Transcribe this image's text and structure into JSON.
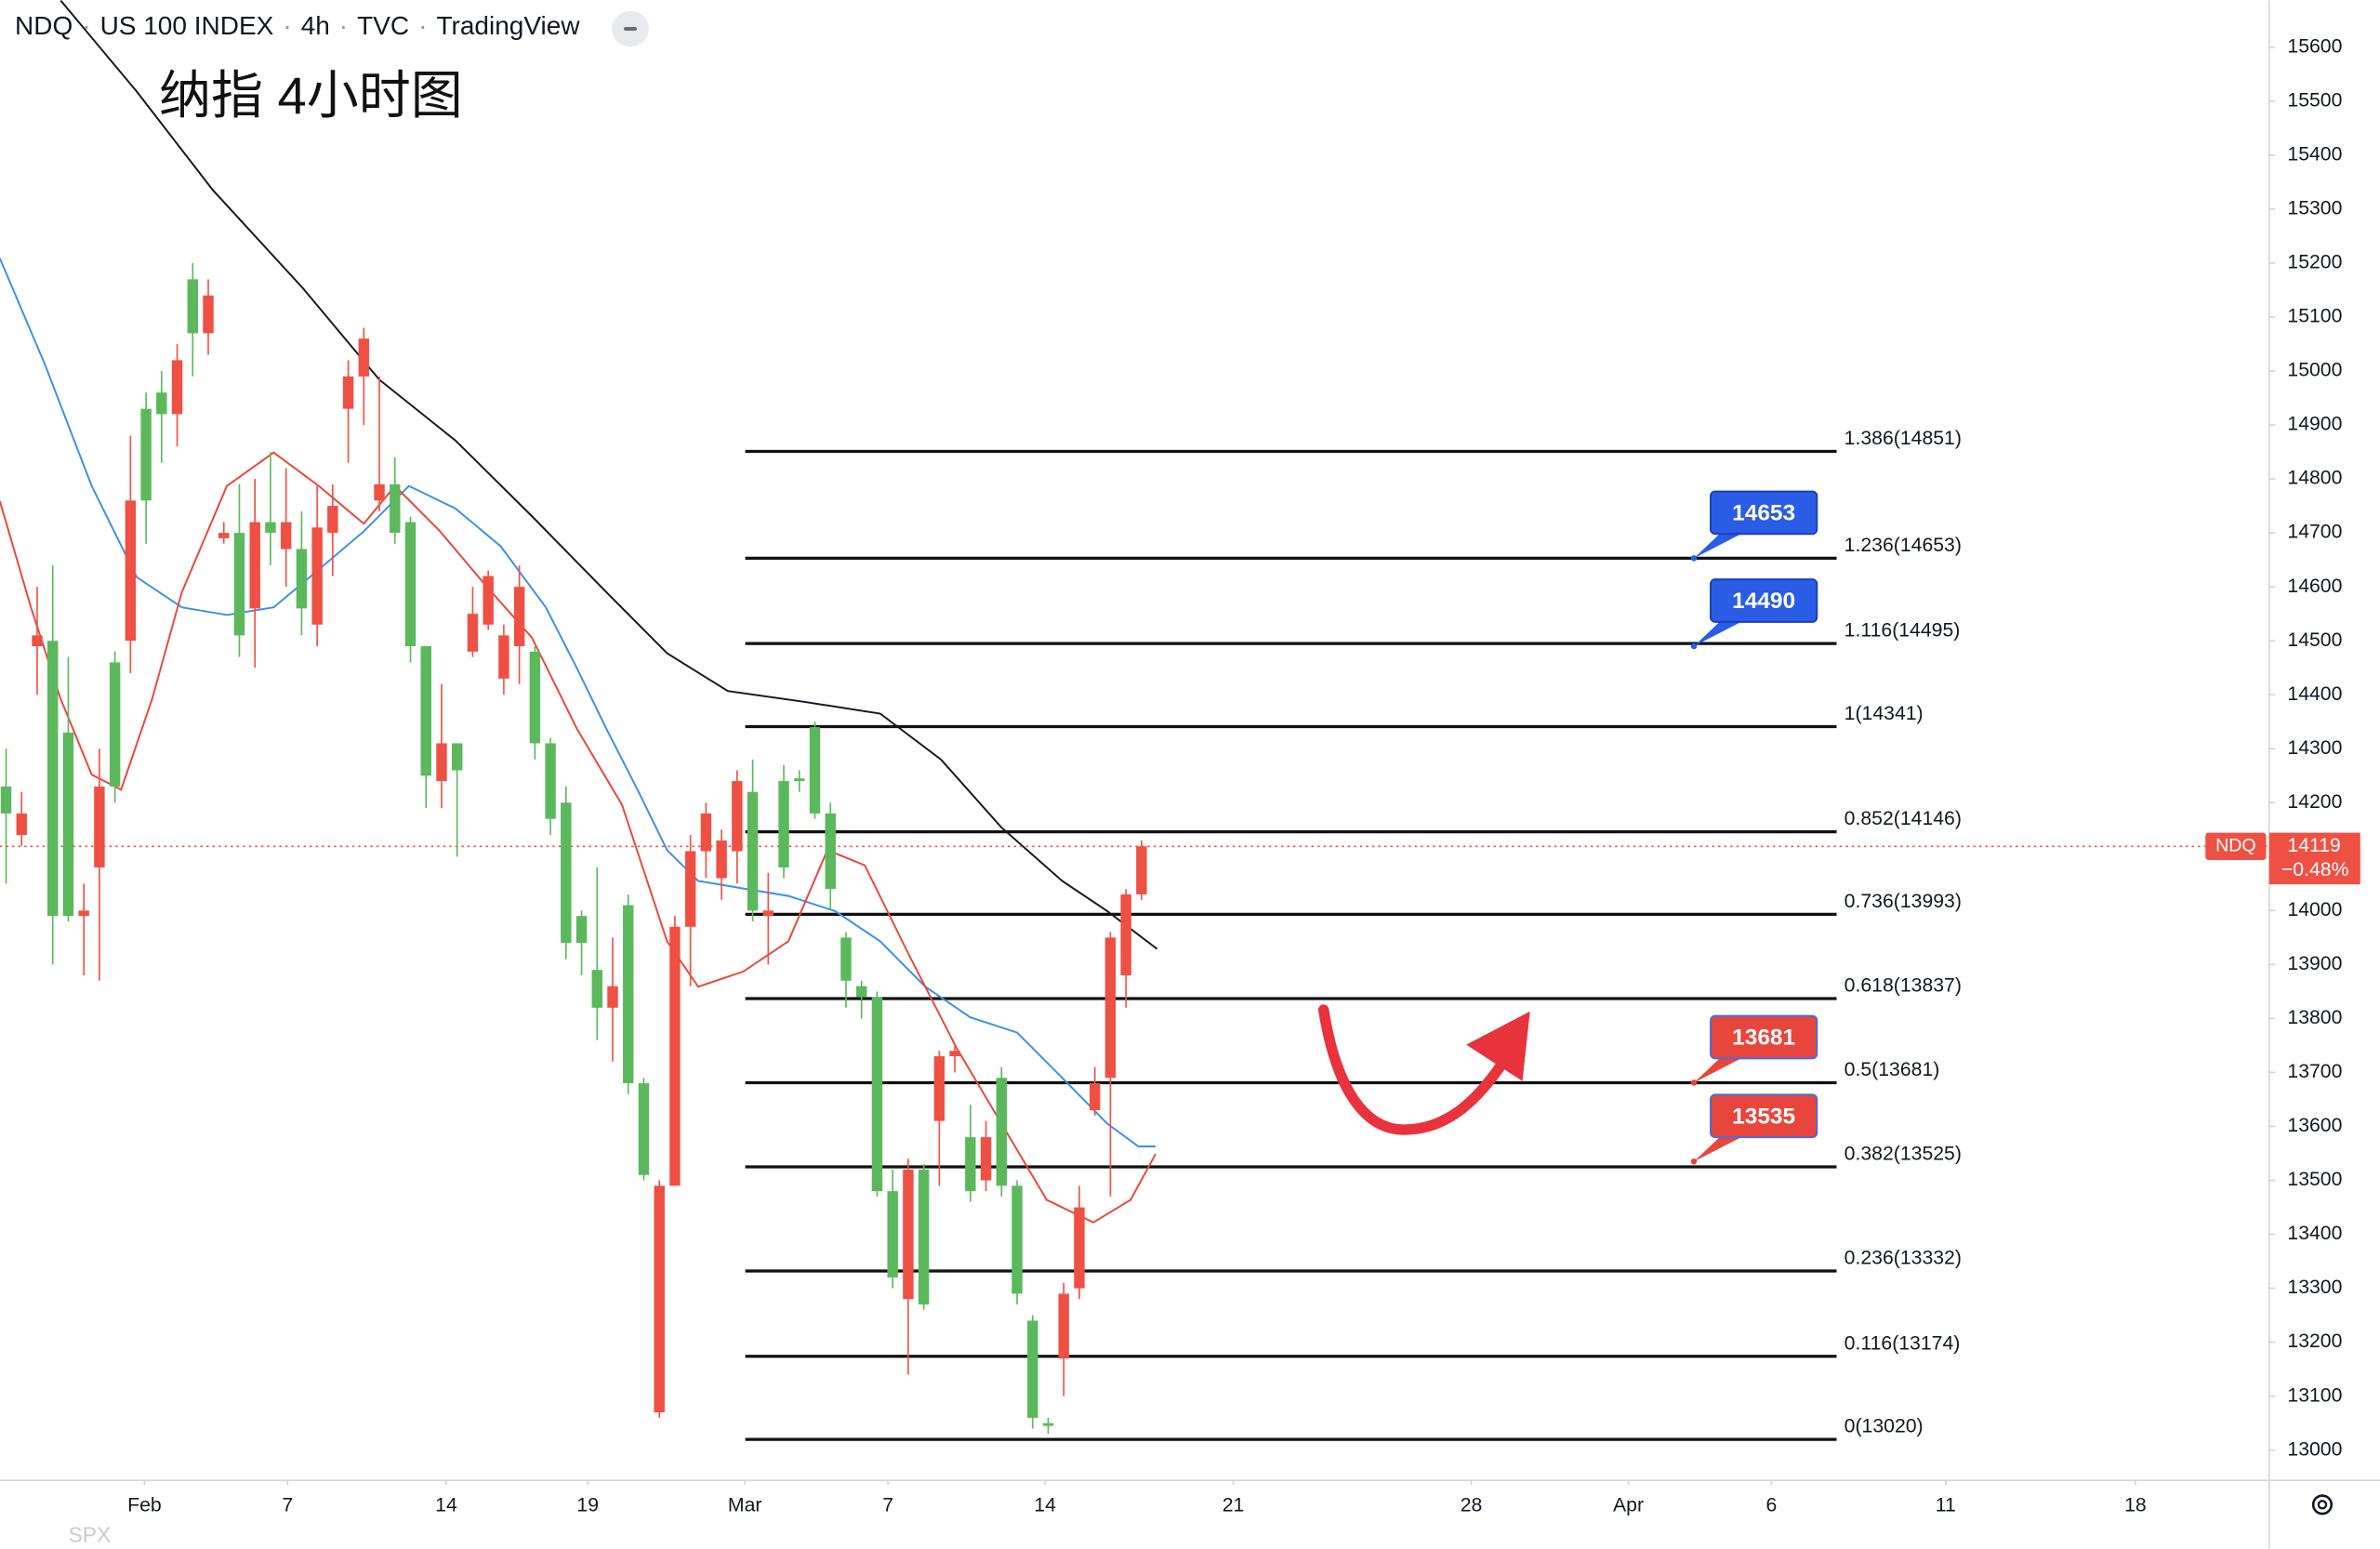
{
  "chart_data": {
    "type": "candlestick",
    "header": [
      "NDQ",
      "US 100 INDEX",
      "4h",
      "TVC",
      "TradingView"
    ],
    "title": "纳指 4小时图",
    "footer_symbol": "SPX",
    "up_color": "#5cb85c",
    "down_color": "#ef5044",
    "xlim": [
      -0.39,
      145.5
    ],
    "ylim": [
      12944,
      15687
    ],
    "yticks": [
      13000,
      13100,
      13200,
      13300,
      13400,
      13500,
      13600,
      13700,
      13800,
      13900,
      14000,
      14100,
      14200,
      14300,
      14400,
      14500,
      14600,
      14700,
      14800,
      14900,
      15000,
      15100,
      15200,
      15300,
      15400,
      15500,
      15600
    ],
    "xticks": [
      {
        "value": 8.9,
        "label": "Feb"
      },
      {
        "value": 18.1,
        "label": "7"
      },
      {
        "value": 28.3,
        "label": "14"
      },
      {
        "value": 37.4,
        "label": "19"
      },
      {
        "value": 47.5,
        "label": "Mar"
      },
      {
        "value": 56.7,
        "label": "7"
      },
      {
        "value": 66.8,
        "label": "14"
      },
      {
        "value": 78.9,
        "label": "21"
      },
      {
        "value": 94.2,
        "label": "28"
      },
      {
        "value": 104.3,
        "label": "Apr"
      },
      {
        "value": 113.5,
        "label": "6"
      },
      {
        "value": 124.7,
        "label": "11"
      },
      {
        "value": 136.9,
        "label": "18"
      }
    ],
    "grid": false,
    "candles": [
      [
        14180,
        14300,
        14050,
        14230
      ],
      [
        14180,
        14220,
        14120,
        14140
      ],
      [
        14510,
        14600,
        14400,
        14490
      ],
      [
        13990,
        14640,
        13900,
        14500
      ],
      [
        13990,
        14470,
        13980,
        14330
      ],
      [
        14000,
        14050,
        13880,
        13990
      ],
      [
        14230,
        14300,
        13870,
        14080
      ],
      [
        14230,
        14480,
        14200,
        14460
      ],
      [
        14760,
        14880,
        14440,
        14500
      ],
      [
        14760,
        14960,
        14680,
        14930
      ],
      [
        14920,
        15000,
        14830,
        14960
      ],
      [
        15020,
        15050,
        14860,
        14920
      ],
      [
        15070,
        15200,
        14990,
        15170
      ],
      [
        15140,
        15170,
        15030,
        15070
      ],
      [
        14700,
        14720,
        14680,
        14690
      ],
      [
        14510,
        14790,
        14470,
        14700
      ],
      [
        14720,
        14800,
        14450,
        14560
      ],
      [
        14700,
        14850,
        14640,
        14720
      ],
      [
        14720,
        14820,
        14600,
        14670
      ],
      [
        14560,
        14740,
        14510,
        14670
      ],
      [
        14710,
        14790,
        14490,
        14530
      ],
      [
        14750,
        14790,
        14620,
        14700
      ],
      [
        14990,
        15020,
        14830,
        14930
      ],
      [
        15060,
        15080,
        14900,
        14990
      ],
      [
        14790,
        14990,
        14740,
        14760
      ],
      [
        14700,
        14840,
        14680,
        14790
      ],
      [
        14490,
        14730,
        14460,
        14720
      ],
      [
        14250,
        14490,
        14190,
        14490
      ],
      [
        14310,
        14420,
        14190,
        14240
      ],
      [
        14260,
        14310,
        14100,
        14310
      ],
      [
        14550,
        14600,
        14470,
        14480
      ],
      [
        14620,
        14630,
        14520,
        14530
      ],
      [
        14510,
        14530,
        14400,
        14430
      ],
      [
        14600,
        14640,
        14420,
        14490
      ],
      [
        14310,
        14490,
        14280,
        14480
      ],
      [
        14170,
        14320,
        14140,
        14310
      ],
      [
        13940,
        14230,
        13910,
        14200
      ],
      [
        13940,
        14000,
        13880,
        13990
      ],
      [
        13820,
        14080,
        13760,
        13890
      ],
      [
        13860,
        13950,
        13720,
        13820
      ],
      [
        13680,
        14030,
        13660,
        14010
      ],
      [
        13510,
        13690,
        13500,
        13680
      ],
      [
        13490,
        13500,
        13060,
        13070
      ],
      [
        13970,
        13990,
        13490,
        13490
      ],
      [
        14110,
        14140,
        13860,
        13970
      ],
      [
        14180,
        14200,
        14060,
        14110
      ],
      [
        14130,
        14150,
        14020,
        14060
      ],
      [
        14240,
        14260,
        14050,
        14110
      ],
      [
        14000,
        14280,
        13980,
        14220
      ],
      [
        14000,
        14070,
        13900,
        13990
      ],
      [
        14080,
        14270,
        14060,
        14240
      ],
      [
        14240,
        14260,
        14220,
        14245
      ],
      [
        14180,
        14350,
        14170,
        14340
      ],
      [
        14040,
        14200,
        14000,
        14180
      ],
      [
        13870,
        13960,
        13820,
        13950
      ],
      [
        13840,
        13870,
        13800,
        13860
      ],
      [
        13480,
        13850,
        13470,
        13840
      ],
      [
        13320,
        13520,
        13300,
        13480
      ],
      [
        13520,
        13540,
        13140,
        13280
      ],
      [
        13270,
        13530,
        13260,
        13520
      ],
      [
        13730,
        13740,
        13490,
        13610
      ],
      [
        13740,
        13750,
        13700,
        13730
      ],
      [
        13480,
        13640,
        13460,
        13580
      ],
      [
        13580,
        13610,
        13480,
        13500
      ],
      [
        13490,
        13710,
        13470,
        13690
      ],
      [
        13290,
        13500,
        13270,
        13490
      ],
      [
        13060,
        13250,
        13040,
        13240
      ],
      [
        13045,
        13060,
        13030,
        13050
      ],
      [
        13290,
        13310,
        13100,
        13170
      ],
      [
        13450,
        13490,
        13280,
        13300
      ],
      [
        13680,
        13710,
        13620,
        13630
      ],
      [
        13950,
        13960,
        13470,
        13690
      ],
      [
        14030,
        14040,
        13820,
        13880
      ],
      [
        14119,
        14130,
        14020,
        14030
      ]
    ],
    "lines": [
      {
        "color": "#131722",
        "x": [
          3.5,
          8.4,
          13.3,
          19.1,
          24.0,
          28.9,
          33.8,
          38.6,
          42.5,
          46.4,
          51.3,
          56.2,
          60.1,
          64.0,
          67.9,
          70.8,
          74.0
        ],
        "values": [
          15687,
          15518,
          15335,
          15153,
          14984,
          14871,
          14731,
          14590,
          14477,
          14407,
          14387,
          14365,
          14280,
          14154,
          14055,
          13999,
          13929
        ]
      },
      {
        "color": "#3d8fe0",
        "x": [
          -0.4,
          2.5,
          5.5,
          8.4,
          11.3,
          14.2,
          17.2,
          20.1,
          23.0,
          25.9,
          28.9,
          31.8,
          34.7,
          36.7,
          38.6,
          40.6,
          42.5,
          44.5,
          47.4,
          50.3,
          53.3,
          56.2,
          59.1,
          62.0,
          65.0,
          67.9,
          70.8,
          72.8,
          73.9
        ],
        "values": [
          15209,
          15012,
          14787,
          14618,
          14562,
          14548,
          14562,
          14632,
          14703,
          14787,
          14745,
          14675,
          14562,
          14449,
          14337,
          14224,
          14112,
          14055,
          14041,
          14027,
          13999,
          13943,
          13859,
          13802,
          13774,
          13690,
          13605,
          13563,
          13563
        ]
      },
      {
        "color": "#e8463c",
        "x": [
          -0.4,
          1.6,
          3.5,
          5.5,
          7.4,
          9.4,
          11.3,
          14.2,
          17.2,
          20.1,
          23.0,
          25.0,
          27.9,
          30.8,
          33.8,
          36.7,
          39.6,
          42.5,
          44.5,
          47.4,
          50.3,
          52.8,
          55.2,
          58.1,
          61.1,
          64.0,
          66.9,
          69.9,
          72.3,
          73.9
        ],
        "values": [
          14759,
          14562,
          14393,
          14252,
          14224,
          14393,
          14590,
          14787,
          14849,
          14787,
          14717,
          14787,
          14703,
          14604,
          14506,
          14337,
          14196,
          13943,
          13859,
          13887,
          13943,
          14112,
          14084,
          13915,
          13746,
          13605,
          13464,
          13422,
          13464,
          13549
        ]
      }
    ],
    "fib_levels": [
      {
        "value": 14851,
        "label": "1.386(14851)"
      },
      {
        "value": 14653,
        "label": "1.236(14653)"
      },
      {
        "value": 14495,
        "label": "1.116(14495)"
      },
      {
        "value": 14341,
        "label": "1(14341)"
      },
      {
        "value": 14146,
        "label": "0.852(14146)"
      },
      {
        "value": 13993,
        "label": "0.736(13993)"
      },
      {
        "value": 13837,
        "label": "0.618(13837)"
      },
      {
        "value": 13681,
        "label": "0.5(13681)"
      },
      {
        "value": 13525,
        "label": "0.382(13525)"
      },
      {
        "value": 13332,
        "label": "0.236(13332)"
      },
      {
        "value": 13174,
        "label": "0.116(13174)"
      },
      {
        "value": 13020,
        "label": "0(13020)"
      }
    ],
    "callouts": [
      {
        "value": 14653,
        "color": "#2b5ce6"
      },
      {
        "value": 14490,
        "color": "#2b5ce6"
      },
      {
        "value": 13681,
        "color": "#e8463c"
      },
      {
        "value": 13535,
        "color": "#e8463c"
      }
    ],
    "last_price": {
      "name": "NDQ",
      "value": 14119,
      "change": {
        "value": -0.48,
        "label": "−0.48%"
      },
      "color": "#ef5044"
    }
  }
}
